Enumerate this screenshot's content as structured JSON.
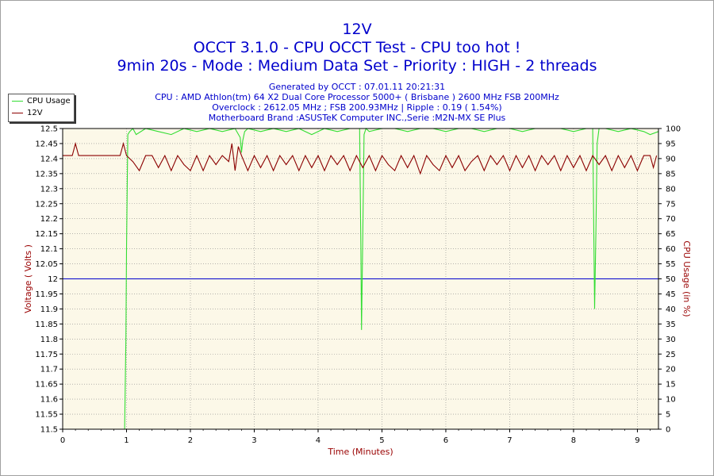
{
  "header": {
    "title": "12V",
    "subtitle": "OCCT 3.1.0 - CPU OCCT Test - CPU too hot !",
    "subtitle2": "9min 20s - Mode : Medium Data Set - Priority : HIGH - 2 threads",
    "info": [
      "Generated by OCCT : 07.01.11 20:21:31",
      "CPU : AMD Athlon(tm) 64 X2 Dual Core Processor 5000+ ( Brisbane ) 2600 MHz FSB 200MHz",
      "Overclock : 2612.05 MHz ; FSB 200.93MHz | Ripple : 0.19 ( 1.54%)",
      "Motherboard Brand :ASUSTeK Computer INC.,Serie :M2N-MX SE Plus"
    ]
  },
  "legend": {
    "items": [
      {
        "label": "CPU Usage"
      },
      {
        "label": "12V"
      }
    ]
  },
  "chart_data": {
    "type": "line",
    "xlabel": "Time (Minutes)",
    "ylabel": "Voltage ( Volts )",
    "y2label": "CPU Usage (in %)",
    "xlim": [
      0,
      9.33
    ],
    "ylim": [
      11.5,
      12.5
    ],
    "y2lim": [
      0,
      100
    ],
    "xticks": [
      "0",
      "1",
      "2",
      "3",
      "4",
      "5",
      "6",
      "7",
      "8",
      "9"
    ],
    "yticks": [
      "11.5",
      "11.55",
      "11.6",
      "11.65",
      "11.7",
      "11.75",
      "11.8",
      "11.85",
      "11.9",
      "11.95",
      "12",
      "12.05",
      "12.1",
      "12.15",
      "12.2",
      "12.25",
      "12.3",
      "12.35",
      "12.4",
      "12.45",
      "12.5"
    ],
    "y2ticks": [
      "0",
      "5",
      "10",
      "15",
      "20",
      "25",
      "30",
      "35",
      "40",
      "45",
      "50",
      "55",
      "60",
      "65",
      "70",
      "75",
      "80",
      "85",
      "90",
      "95",
      "100"
    ],
    "reference_line": {
      "y": 12.0,
      "color": "#0000cc"
    },
    "grid": true,
    "legend_position": "top-left",
    "colors": {
      "cpu": "#33dd33",
      "v12": "#8b0000",
      "plot_bg": "#fcf8e8",
      "grid": "#888888"
    },
    "series": [
      {
        "name": "CPU Usage",
        "axis": "right",
        "x": [
          0.0,
          0.95,
          0.97,
          0.99,
          1.0,
          1.02,
          1.05,
          1.1,
          1.15,
          1.3,
          1.5,
          1.7,
          1.9,
          2.1,
          2.3,
          2.5,
          2.7,
          2.78,
          2.8,
          2.82,
          2.85,
          2.9,
          3.1,
          3.3,
          3.5,
          3.7,
          3.9,
          4.1,
          4.3,
          4.5,
          4.65,
          4.67,
          4.68,
          4.7,
          4.72,
          4.75,
          4.8,
          5.0,
          5.2,
          5.4,
          5.6,
          5.8,
          6.0,
          6.2,
          6.4,
          6.6,
          6.8,
          7.0,
          7.2,
          7.4,
          7.6,
          7.8,
          8.0,
          8.2,
          8.3,
          8.32,
          8.33,
          8.35,
          8.37,
          8.4,
          8.5,
          8.7,
          8.9,
          9.1,
          9.2,
          9.33
        ],
        "values": [
          null,
          null,
          0,
          30,
          60,
          98,
          99,
          100,
          98,
          100,
          99,
          98,
          100,
          99,
          100,
          99,
          100,
          97,
          92,
          96,
          99,
          100,
          99,
          100,
          99,
          100,
          98,
          100,
          99,
          100,
          100,
          60,
          33,
          65,
          98,
          100,
          99,
          100,
          100,
          99,
          100,
          100,
          99,
          100,
          100,
          99,
          100,
          100,
          99,
          100,
          100,
          100,
          99,
          100,
          100,
          60,
          40,
          65,
          95,
          100,
          100,
          99,
          100,
          99,
          98,
          99
        ]
      },
      {
        "name": "12V",
        "axis": "left",
        "x": [
          0.0,
          0.15,
          0.2,
          0.25,
          0.3,
          0.6,
          0.9,
          0.95,
          1.0,
          1.1,
          1.2,
          1.3,
          1.4,
          1.5,
          1.6,
          1.7,
          1.8,
          1.9,
          2.0,
          2.1,
          2.2,
          2.3,
          2.4,
          2.5,
          2.6,
          2.65,
          2.7,
          2.75,
          2.8,
          2.9,
          3.0,
          3.1,
          3.2,
          3.3,
          3.4,
          3.5,
          3.6,
          3.7,
          3.8,
          3.9,
          4.0,
          4.1,
          4.2,
          4.3,
          4.4,
          4.5,
          4.6,
          4.7,
          4.8,
          4.9,
          5.0,
          5.1,
          5.2,
          5.3,
          5.4,
          5.5,
          5.6,
          5.7,
          5.8,
          5.9,
          6.0,
          6.1,
          6.2,
          6.3,
          6.4,
          6.5,
          6.6,
          6.7,
          6.8,
          6.9,
          7.0,
          7.1,
          7.2,
          7.3,
          7.4,
          7.5,
          7.6,
          7.7,
          7.8,
          7.9,
          8.0,
          8.1,
          8.2,
          8.3,
          8.4,
          8.5,
          8.6,
          8.7,
          8.8,
          8.9,
          9.0,
          9.1,
          9.2,
          9.25,
          9.3
        ],
        "values": [
          12.41,
          12.41,
          12.45,
          12.41,
          12.41,
          12.41,
          12.41,
          12.45,
          12.41,
          12.39,
          12.36,
          12.41,
          12.41,
          12.37,
          12.41,
          12.36,
          12.41,
          12.38,
          12.36,
          12.41,
          12.36,
          12.41,
          12.38,
          12.41,
          12.39,
          12.45,
          12.36,
          12.44,
          12.41,
          12.36,
          12.41,
          12.37,
          12.41,
          12.36,
          12.41,
          12.38,
          12.41,
          12.36,
          12.41,
          12.37,
          12.41,
          12.36,
          12.41,
          12.38,
          12.41,
          12.36,
          12.41,
          12.37,
          12.41,
          12.36,
          12.41,
          12.38,
          12.36,
          12.41,
          12.37,
          12.41,
          12.35,
          12.41,
          12.38,
          12.36,
          12.41,
          12.37,
          12.41,
          12.36,
          12.39,
          12.41,
          12.36,
          12.41,
          12.38,
          12.41,
          12.36,
          12.41,
          12.37,
          12.41,
          12.36,
          12.41,
          12.38,
          12.41,
          12.36,
          12.41,
          12.37,
          12.41,
          12.36,
          12.41,
          12.38,
          12.41,
          12.36,
          12.41,
          12.37,
          12.41,
          12.36,
          12.41,
          12.41,
          12.37,
          12.41
        ]
      }
    ]
  }
}
